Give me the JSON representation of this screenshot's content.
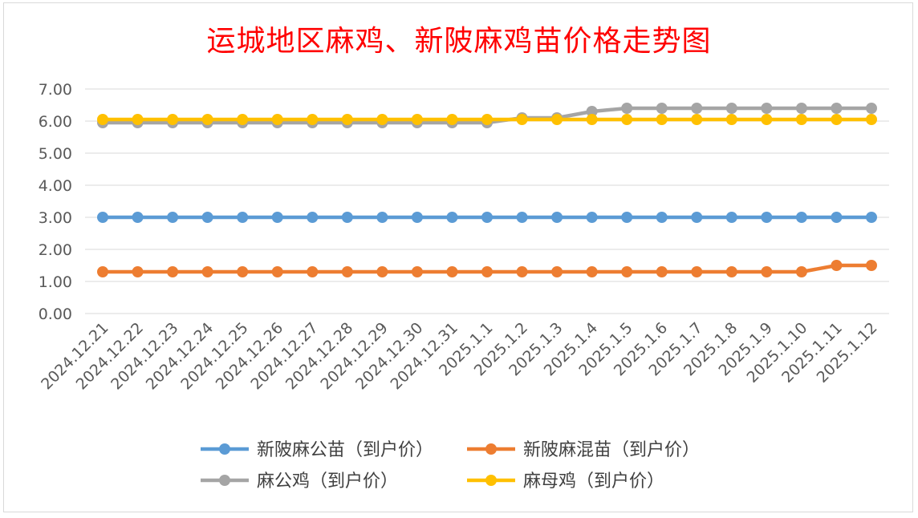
{
  "chart_data": {
    "type": "line",
    "title": "运城地区麻鸡、新陂麻鸡苗价格走势图",
    "categories": [
      "2024.12.21",
      "2024.12.22",
      "2024.12.23",
      "2024.12.24",
      "2024.12.25",
      "2024.12.26",
      "2024.12.27",
      "2024.12.28",
      "2024.12.29",
      "2024.12.30",
      "2024.12.31",
      "2025.1.1",
      "2025.1.2",
      "2025.1.3",
      "2025.1.4",
      "2025.1.5",
      "2025.1.6",
      "2025.1.7",
      "2025.1.8",
      "2025.1.9",
      "2025.1.10",
      "2025.1.11",
      "2025.1.12"
    ],
    "y_ticks": [
      "0.00",
      "1.00",
      "2.00",
      "3.00",
      "4.00",
      "5.00",
      "6.00",
      "7.00"
    ],
    "ylim": [
      0,
      7
    ],
    "grid": true,
    "legend_position": "bottom",
    "series": [
      {
        "name": "新陂麻公苗（到户价）",
        "color": "#5b9bd5",
        "values": [
          3,
          3,
          3,
          3,
          3,
          3,
          3,
          3,
          3,
          3,
          3,
          3,
          3,
          3,
          3,
          3,
          3,
          3,
          3,
          3,
          3,
          3,
          3
        ]
      },
      {
        "name": "新陂麻混苗（到户价）",
        "color": "#ed7d31",
        "values": [
          1.3,
          1.3,
          1.3,
          1.3,
          1.3,
          1.3,
          1.3,
          1.3,
          1.3,
          1.3,
          1.3,
          1.3,
          1.3,
          1.3,
          1.3,
          1.3,
          1.3,
          1.3,
          1.3,
          1.3,
          1.3,
          1.5,
          1.5
        ]
      },
      {
        "name": "麻公鸡（到户价）",
        "color": "#a5a5a5",
        "values": [
          5.95,
          5.95,
          5.95,
          5.95,
          5.95,
          5.95,
          5.95,
          5.95,
          5.95,
          5.95,
          5.95,
          5.95,
          6.1,
          6.1,
          6.3,
          6.4,
          6.4,
          6.4,
          6.4,
          6.4,
          6.4,
          6.4,
          6.4
        ]
      },
      {
        "name": "麻母鸡（到户价）",
        "color": "#ffc000",
        "values": [
          6.05,
          6.05,
          6.05,
          6.05,
          6.05,
          6.05,
          6.05,
          6.05,
          6.05,
          6.05,
          6.05,
          6.05,
          6.05,
          6.05,
          6.05,
          6.05,
          6.05,
          6.05,
          6.05,
          6.05,
          6.05,
          6.05,
          6.05
        ]
      }
    ],
    "legend_order": [
      0,
      1,
      2,
      3
    ]
  }
}
